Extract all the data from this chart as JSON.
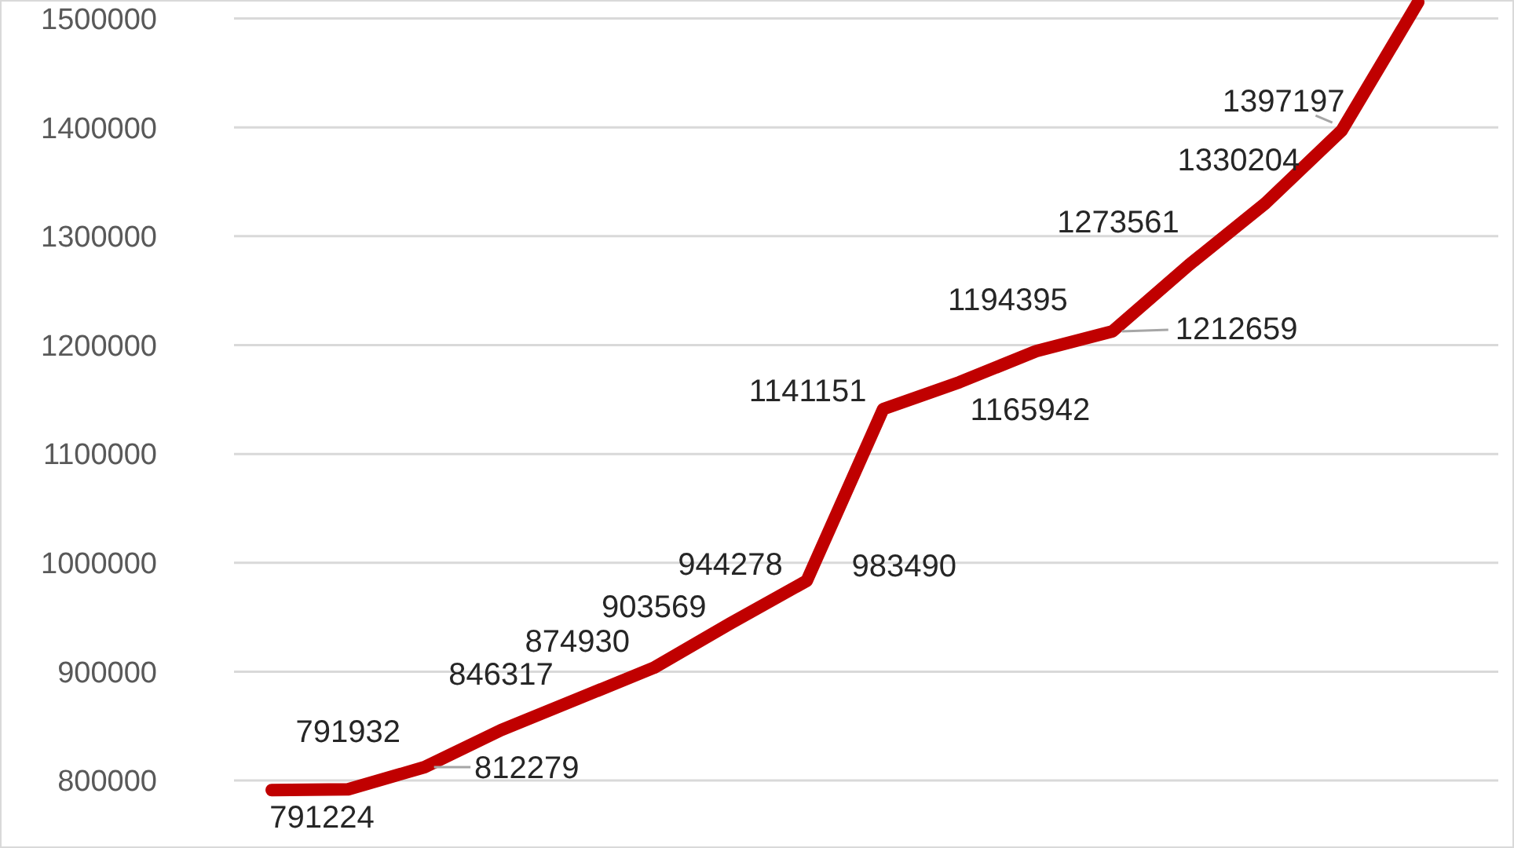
{
  "chart_data": {
    "type": "line",
    "categories": [
      null,
      null,
      null,
      null,
      null,
      null,
      null,
      null,
      null,
      null,
      null,
      null,
      null,
      null,
      null,
      null
    ],
    "series": [
      {
        "color": "#c00000",
        "values": [
          791224,
          791932,
          812279,
          846317,
          874930,
          903569,
          944278,
          983490,
          1141151,
          1165942,
          1194395,
          1212659,
          1273561,
          1330204,
          1397197,
          1515000
        ],
        "value_labels": [
          "791224",
          "791932",
          "812279",
          "846317",
          "874930",
          "903569",
          "944278",
          "983490",
          "1141151",
          "1165942",
          "1194395",
          "1212659",
          "1273561",
          "1330204",
          "1397197",
          null
        ]
      }
    ],
    "ylim": [
      738000,
      1517000
    ],
    "yticks": [
      800000,
      900000,
      1000000,
      1100000,
      1200000,
      1300000,
      1400000,
      1500000
    ],
    "grid": "y",
    "marker": "none",
    "line_style": "solid"
  }
}
